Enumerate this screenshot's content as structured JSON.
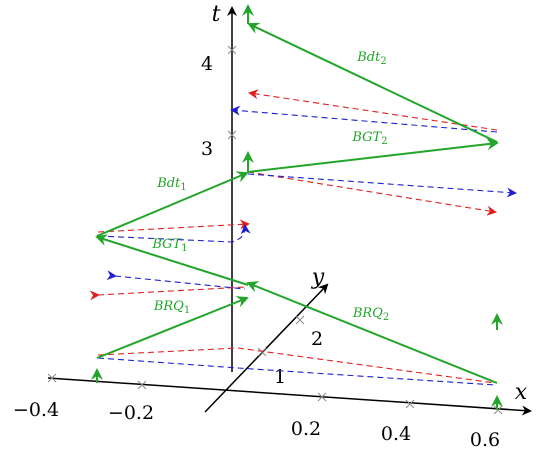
{
  "axes": {
    "t": {
      "label": "t",
      "ticks": [
        "4",
        "3"
      ]
    },
    "x": {
      "label": "x",
      "ticks": [
        "−0.4",
        "−0.2",
        "0.2",
        "0.4",
        "0.6"
      ]
    },
    "y": {
      "label": "y",
      "ticks": [
        "1",
        "2"
      ]
    }
  },
  "annotations": [
    {
      "text": "BRQ",
      "sub": "1"
    },
    {
      "text": "BRQ",
      "sub": "2"
    },
    {
      "text": "BGT",
      "sub": "1"
    },
    {
      "text": "BGT",
      "sub": "2"
    },
    {
      "text": "Bdt",
      "sub": "1"
    },
    {
      "text": "Bdt",
      "sub": "2"
    }
  ]
}
